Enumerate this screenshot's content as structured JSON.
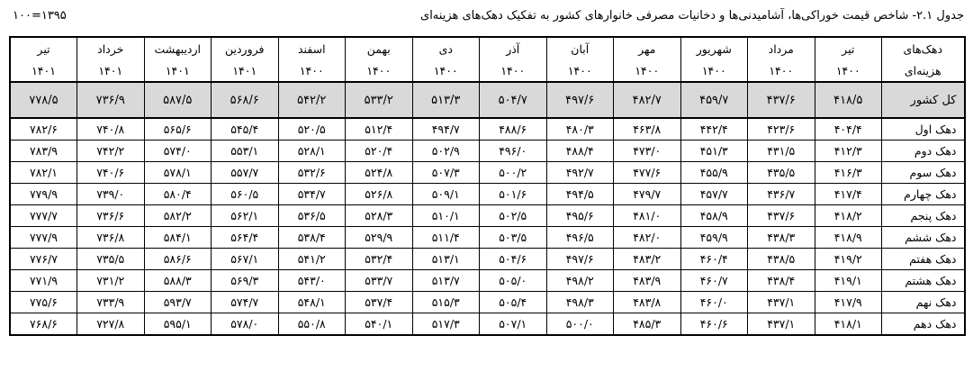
{
  "title": "جدول ۲.۱- شاخص قیمت خوراکی‌ها، آشامیدنی‌ها و دخانیات مصرفی خانوارهای کشور به تفکیک دهک‌های هزینه‌ای",
  "base_year": "۱۰۰=۱۳۹۵",
  "header": {
    "row_label_top": "دهک‌های",
    "row_label_bottom": "هزینه‌ای",
    "months": [
      {
        "name": "تیر",
        "year": "۱۴۰۰"
      },
      {
        "name": "مرداد",
        "year": "۱۴۰۰"
      },
      {
        "name": "شهریور",
        "year": "۱۴۰۰"
      },
      {
        "name": "مهر",
        "year": "۱۴۰۰"
      },
      {
        "name": "آبان",
        "year": "۱۴۰۰"
      },
      {
        "name": "آذر",
        "year": "۱۴۰۰"
      },
      {
        "name": "دی",
        "year": "۱۴۰۰"
      },
      {
        "name": "بهمن",
        "year": "۱۴۰۰"
      },
      {
        "name": "اسفند",
        "year": "۱۴۰۰"
      },
      {
        "name": "فروردین",
        "year": "۱۴۰۱"
      },
      {
        "name": "اردیبهشت",
        "year": "۱۴۰۱"
      },
      {
        "name": "خرداد",
        "year": "۱۴۰۱"
      },
      {
        "name": "تیر",
        "year": "۱۴۰۱"
      }
    ]
  },
  "total_row": {
    "label": "کل کشور",
    "values": [
      "۴۱۸/۵",
      "۴۳۷/۶",
      "۴۵۹/۷",
      "۴۸۲/۷",
      "۴۹۷/۶",
      "۵۰۴/۷",
      "۵۱۳/۳",
      "۵۳۳/۲",
      "۵۴۲/۲",
      "۵۶۸/۶",
      "۵۸۷/۵",
      "۷۳۶/۹",
      "۷۷۸/۵"
    ]
  },
  "rows": [
    {
      "label": "دهک اول",
      "values": [
        "۴۰۴/۴",
        "۴۲۳/۶",
        "۴۴۲/۴",
        "۴۶۳/۸",
        "۴۸۰/۳",
        "۴۸۸/۶",
        "۴۹۴/۷",
        "۵۱۲/۴",
        "۵۲۰/۵",
        "۵۴۵/۴",
        "۵۶۵/۶",
        "۷۴۰/۸",
        "۷۸۲/۶"
      ]
    },
    {
      "label": "دهک دوم",
      "values": [
        "۴۱۲/۳",
        "۴۳۱/۵",
        "۴۵۱/۳",
        "۴۷۳/۰",
        "۴۸۸/۴",
        "۴۹۶/۰",
        "۵۰۲/۹",
        "۵۲۰/۴",
        "۵۲۸/۱",
        "۵۵۳/۱",
        "۵۷۴/۰",
        "۷۴۲/۲",
        "۷۸۳/۹"
      ]
    },
    {
      "label": "دهک سوم",
      "values": [
        "۴۱۶/۳",
        "۴۳۵/۵",
        "۴۵۵/۹",
        "۴۷۷/۶",
        "۴۹۲/۷",
        "۵۰۰/۲",
        "۵۰۷/۳",
        "۵۲۴/۸",
        "۵۳۲/۶",
        "۵۵۷/۷",
        "۵۷۸/۱",
        "۷۴۰/۶",
        "۷۸۲/۱"
      ]
    },
    {
      "label": "دهک چهارم",
      "values": [
        "۴۱۷/۴",
        "۴۳۶/۷",
        "۴۵۷/۷",
        "۴۷۹/۷",
        "۴۹۴/۵",
        "۵۰۱/۶",
        "۵۰۹/۱",
        "۵۲۶/۸",
        "۵۳۴/۷",
        "۵۶۰/۵",
        "۵۸۰/۴",
        "۷۳۹/۰",
        "۷۷۹/۹"
      ]
    },
    {
      "label": "دهک پنجم",
      "values": [
        "۴۱۸/۲",
        "۴۳۷/۶",
        "۴۵۸/۹",
        "۴۸۱/۰",
        "۴۹۵/۶",
        "۵۰۲/۵",
        "۵۱۰/۱",
        "۵۲۸/۳",
        "۵۳۶/۵",
        "۵۶۲/۱",
        "۵۸۲/۲",
        "۷۳۶/۶",
        "۷۷۷/۷"
      ]
    },
    {
      "label": "دهک ششم",
      "values": [
        "۴۱۸/۹",
        "۴۳۸/۳",
        "۴۵۹/۹",
        "۴۸۲/۰",
        "۴۹۶/۵",
        "۵۰۳/۵",
        "۵۱۱/۴",
        "۵۲۹/۹",
        "۵۳۸/۴",
        "۵۶۴/۴",
        "۵۸۴/۱",
        "۷۳۶/۸",
        "۷۷۷/۹"
      ]
    },
    {
      "label": "دهک هفتم",
      "values": [
        "۴۱۹/۲",
        "۴۳۸/۵",
        "۴۶۰/۴",
        "۴۸۳/۲",
        "۴۹۷/۶",
        "۵۰۴/۶",
        "۵۱۳/۱",
        "۵۳۲/۴",
        "۵۴۱/۲",
        "۵۶۷/۱",
        "۵۸۶/۶",
        "۷۳۵/۵",
        "۷۷۶/۷"
      ]
    },
    {
      "label": "دهک هشتم",
      "values": [
        "۴۱۹/۱",
        "۴۳۸/۴",
        "۴۶۰/۷",
        "۴۸۳/۹",
        "۴۹۸/۲",
        "۵۰۵/۰",
        "۵۱۳/۷",
        "۵۳۳/۷",
        "۵۴۳/۰",
        "۵۶۹/۳",
        "۵۸۸/۳",
        "۷۳۱/۲",
        "۷۷۱/۹"
      ]
    },
    {
      "label": "دهک نهم",
      "values": [
        "۴۱۷/۹",
        "۴۳۷/۱",
        "۴۶۰/۰",
        "۴۸۳/۸",
        "۴۹۸/۳",
        "۵۰۵/۴",
        "۵۱۵/۳",
        "۵۳۷/۴",
        "۵۴۸/۱",
        "۵۷۴/۷",
        "۵۹۳/۷",
        "۷۳۳/۹",
        "۷۷۵/۶"
      ]
    },
    {
      "label": "دهک دهم",
      "values": [
        "۴۱۸/۱",
        "۴۳۷/۱",
        "۴۶۰/۶",
        "۴۸۵/۳",
        "۵۰۰/۰",
        "۵۰۷/۱",
        "۵۱۷/۳",
        "۵۴۰/۱",
        "۵۵۰/۸",
        "۵۷۸/۰",
        "۵۹۵/۱",
        "۷۲۷/۸",
        "۷۶۸/۶"
      ]
    }
  ]
}
